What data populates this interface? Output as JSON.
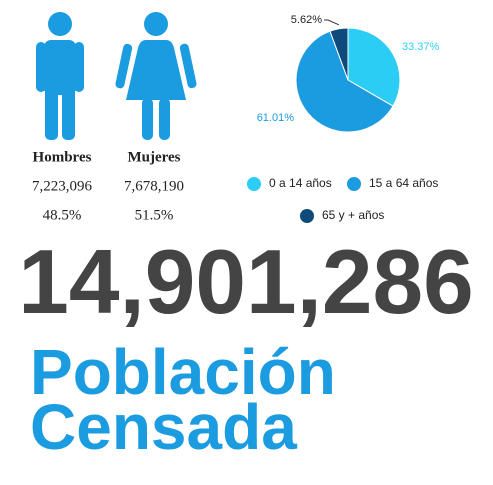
{
  "chart_data": {
    "type": "pie",
    "categories": [
      "0 a 14 años",
      "15 a 64 años",
      "65 y + años"
    ],
    "values": [
      33.37,
      61.01,
      5.62
    ],
    "value_labels": [
      "33.37%",
      "61.01%",
      "5.62%"
    ],
    "colors": [
      "#2ccdf4",
      "#1b9be0",
      "#0e4b7c"
    ]
  },
  "demographics": [
    {
      "label": "Hombres",
      "count": "7,223,096",
      "share": "48.5%"
    },
    {
      "label": "Mujeres",
      "count": "7,678,190",
      "share": "51.5%"
    }
  ],
  "total": "14,901,286",
  "caption": [
    "Población",
    "Censada"
  ]
}
